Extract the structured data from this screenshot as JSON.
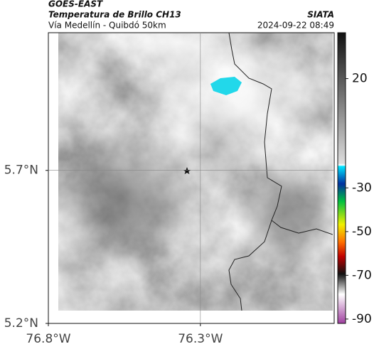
{
  "header": {
    "source": "GOES-EAST",
    "title": "Temperatura de Brillo CH13",
    "subtitle": "Vía Medellín - Quibdó 50km",
    "agency": "SIATA",
    "datetime": "2024-09-22 08:49"
  },
  "map": {
    "xlim": [
      -76.8,
      -75.86
    ],
    "ylim": [
      5.2,
      6.15
    ],
    "xticks": [
      {
        "value": -76.8,
        "label": "76.8°W"
      },
      {
        "value": -76.3,
        "label": "76.3°W"
      }
    ],
    "yticks": [
      {
        "value": 5.7,
        "label": "5.7°N"
      },
      {
        "value": 5.2,
        "label": "5.2°N"
      }
    ]
  },
  "colorbar": {
    "lim": [
      -92,
      41
    ],
    "ticks": [
      20,
      -30,
      -50,
      -70,
      -90
    ]
  }
}
